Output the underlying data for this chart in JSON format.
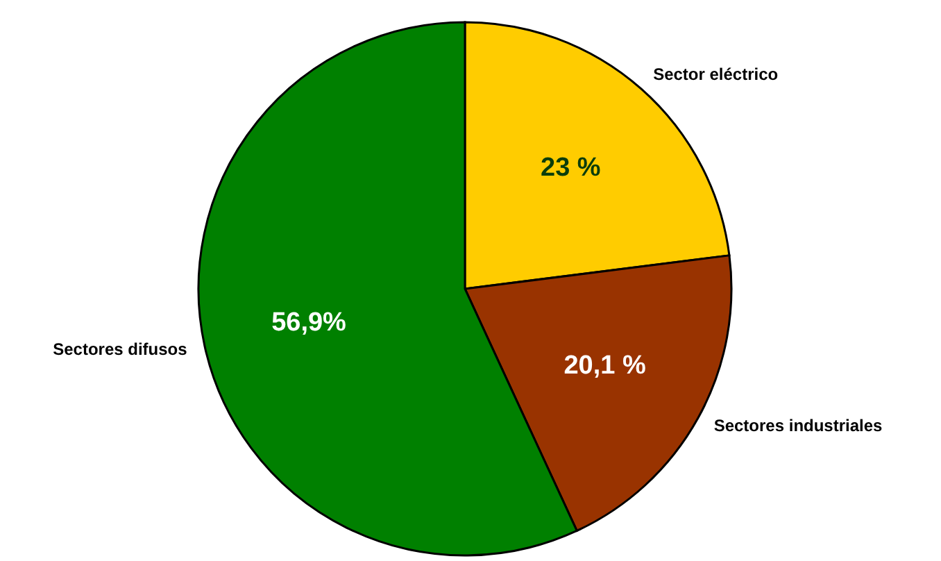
{
  "chart_data": {
    "type": "pie",
    "categories": [
      "Sector eléctrico",
      "Sectores industriales",
      "Sectores difusos"
    ],
    "values": [
      23,
      20.1,
      56.9
    ],
    "colors": [
      "#ffcc00",
      "#993300",
      "#008000"
    ],
    "value_labels": [
      "23 %",
      "20,1 %",
      "56,9%"
    ]
  }
}
